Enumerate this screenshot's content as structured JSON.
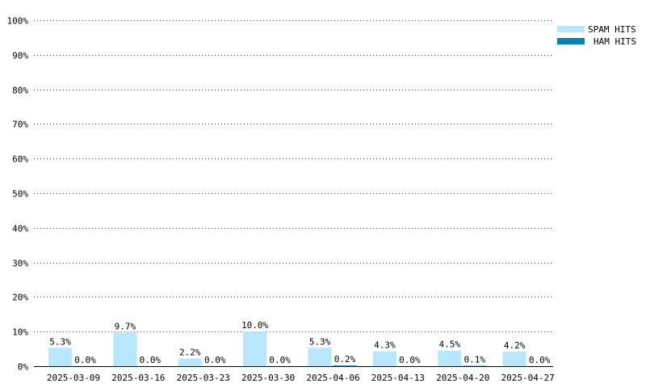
{
  "chart_data": {
    "type": "bar",
    "title": "",
    "xlabel": "",
    "ylabel": "",
    "ylim": [
      0,
      100
    ],
    "y_ticks": [
      "0%",
      "10%",
      "20%",
      "30%",
      "40%",
      "50%",
      "60%",
      "70%",
      "80%",
      "90%",
      "100%"
    ],
    "grid": "horizontal dotted",
    "legend_position": "top-right",
    "categories": [
      "2025-03-09",
      "2025-03-16",
      "2025-03-23",
      "2025-03-30",
      "2025-04-06",
      "2025-04-13",
      "2025-04-20",
      "2025-04-27"
    ],
    "series": [
      {
        "name": "SPAM HITS",
        "color": "#b8e6fa",
        "values": [
          5.3,
          9.7,
          2.2,
          10.0,
          5.3,
          4.3,
          4.5,
          4.2
        ],
        "labels": [
          "5.3%",
          "9.7%",
          "2.2%",
          "10.0%",
          "5.3%",
          "4.3%",
          "4.5%",
          "4.2%"
        ]
      },
      {
        "name": "HAM HITS",
        "color": "#0a7fb0",
        "values": [
          0.0,
          0.0,
          0.0,
          0.0,
          0.2,
          0.0,
          0.1,
          0.0
        ],
        "labels": [
          "0.0%",
          "0.0%",
          "0.0%",
          "0.0%",
          "0.2%",
          "0.0%",
          "0.1%",
          "0.0%"
        ]
      }
    ]
  }
}
